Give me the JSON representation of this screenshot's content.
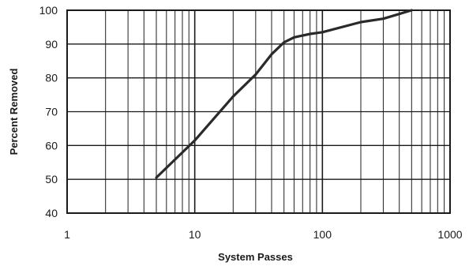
{
  "chart_data": {
    "type": "line",
    "title": "",
    "xlabel": "System Passes",
    "ylabel": "Percent Removed",
    "x_scale": "log",
    "xlim": [
      1,
      1000
    ],
    "ylim": [
      40,
      100
    ],
    "x_ticks": [
      1,
      10,
      100,
      1000
    ],
    "x_tick_labels": [
      "1",
      "10",
      "100",
      "1000"
    ],
    "y_ticks": [
      40,
      50,
      60,
      70,
      80,
      90,
      100
    ],
    "y_tick_labels": [
      "40",
      "50",
      "60",
      "70",
      "80",
      "90",
      "100"
    ],
    "grid": true,
    "legend": "none",
    "line_color": "#2a2a2a",
    "series": [
      {
        "x": [
          5,
          10,
          20,
          30,
          40,
          50,
          60,
          80,
          100,
          200,
          300,
          500
        ],
        "y": [
          50.5,
          61.5,
          74.5,
          81,
          87,
          90.5,
          92,
          93,
          93.5,
          96.5,
          97.5,
          100
        ]
      }
    ]
  }
}
